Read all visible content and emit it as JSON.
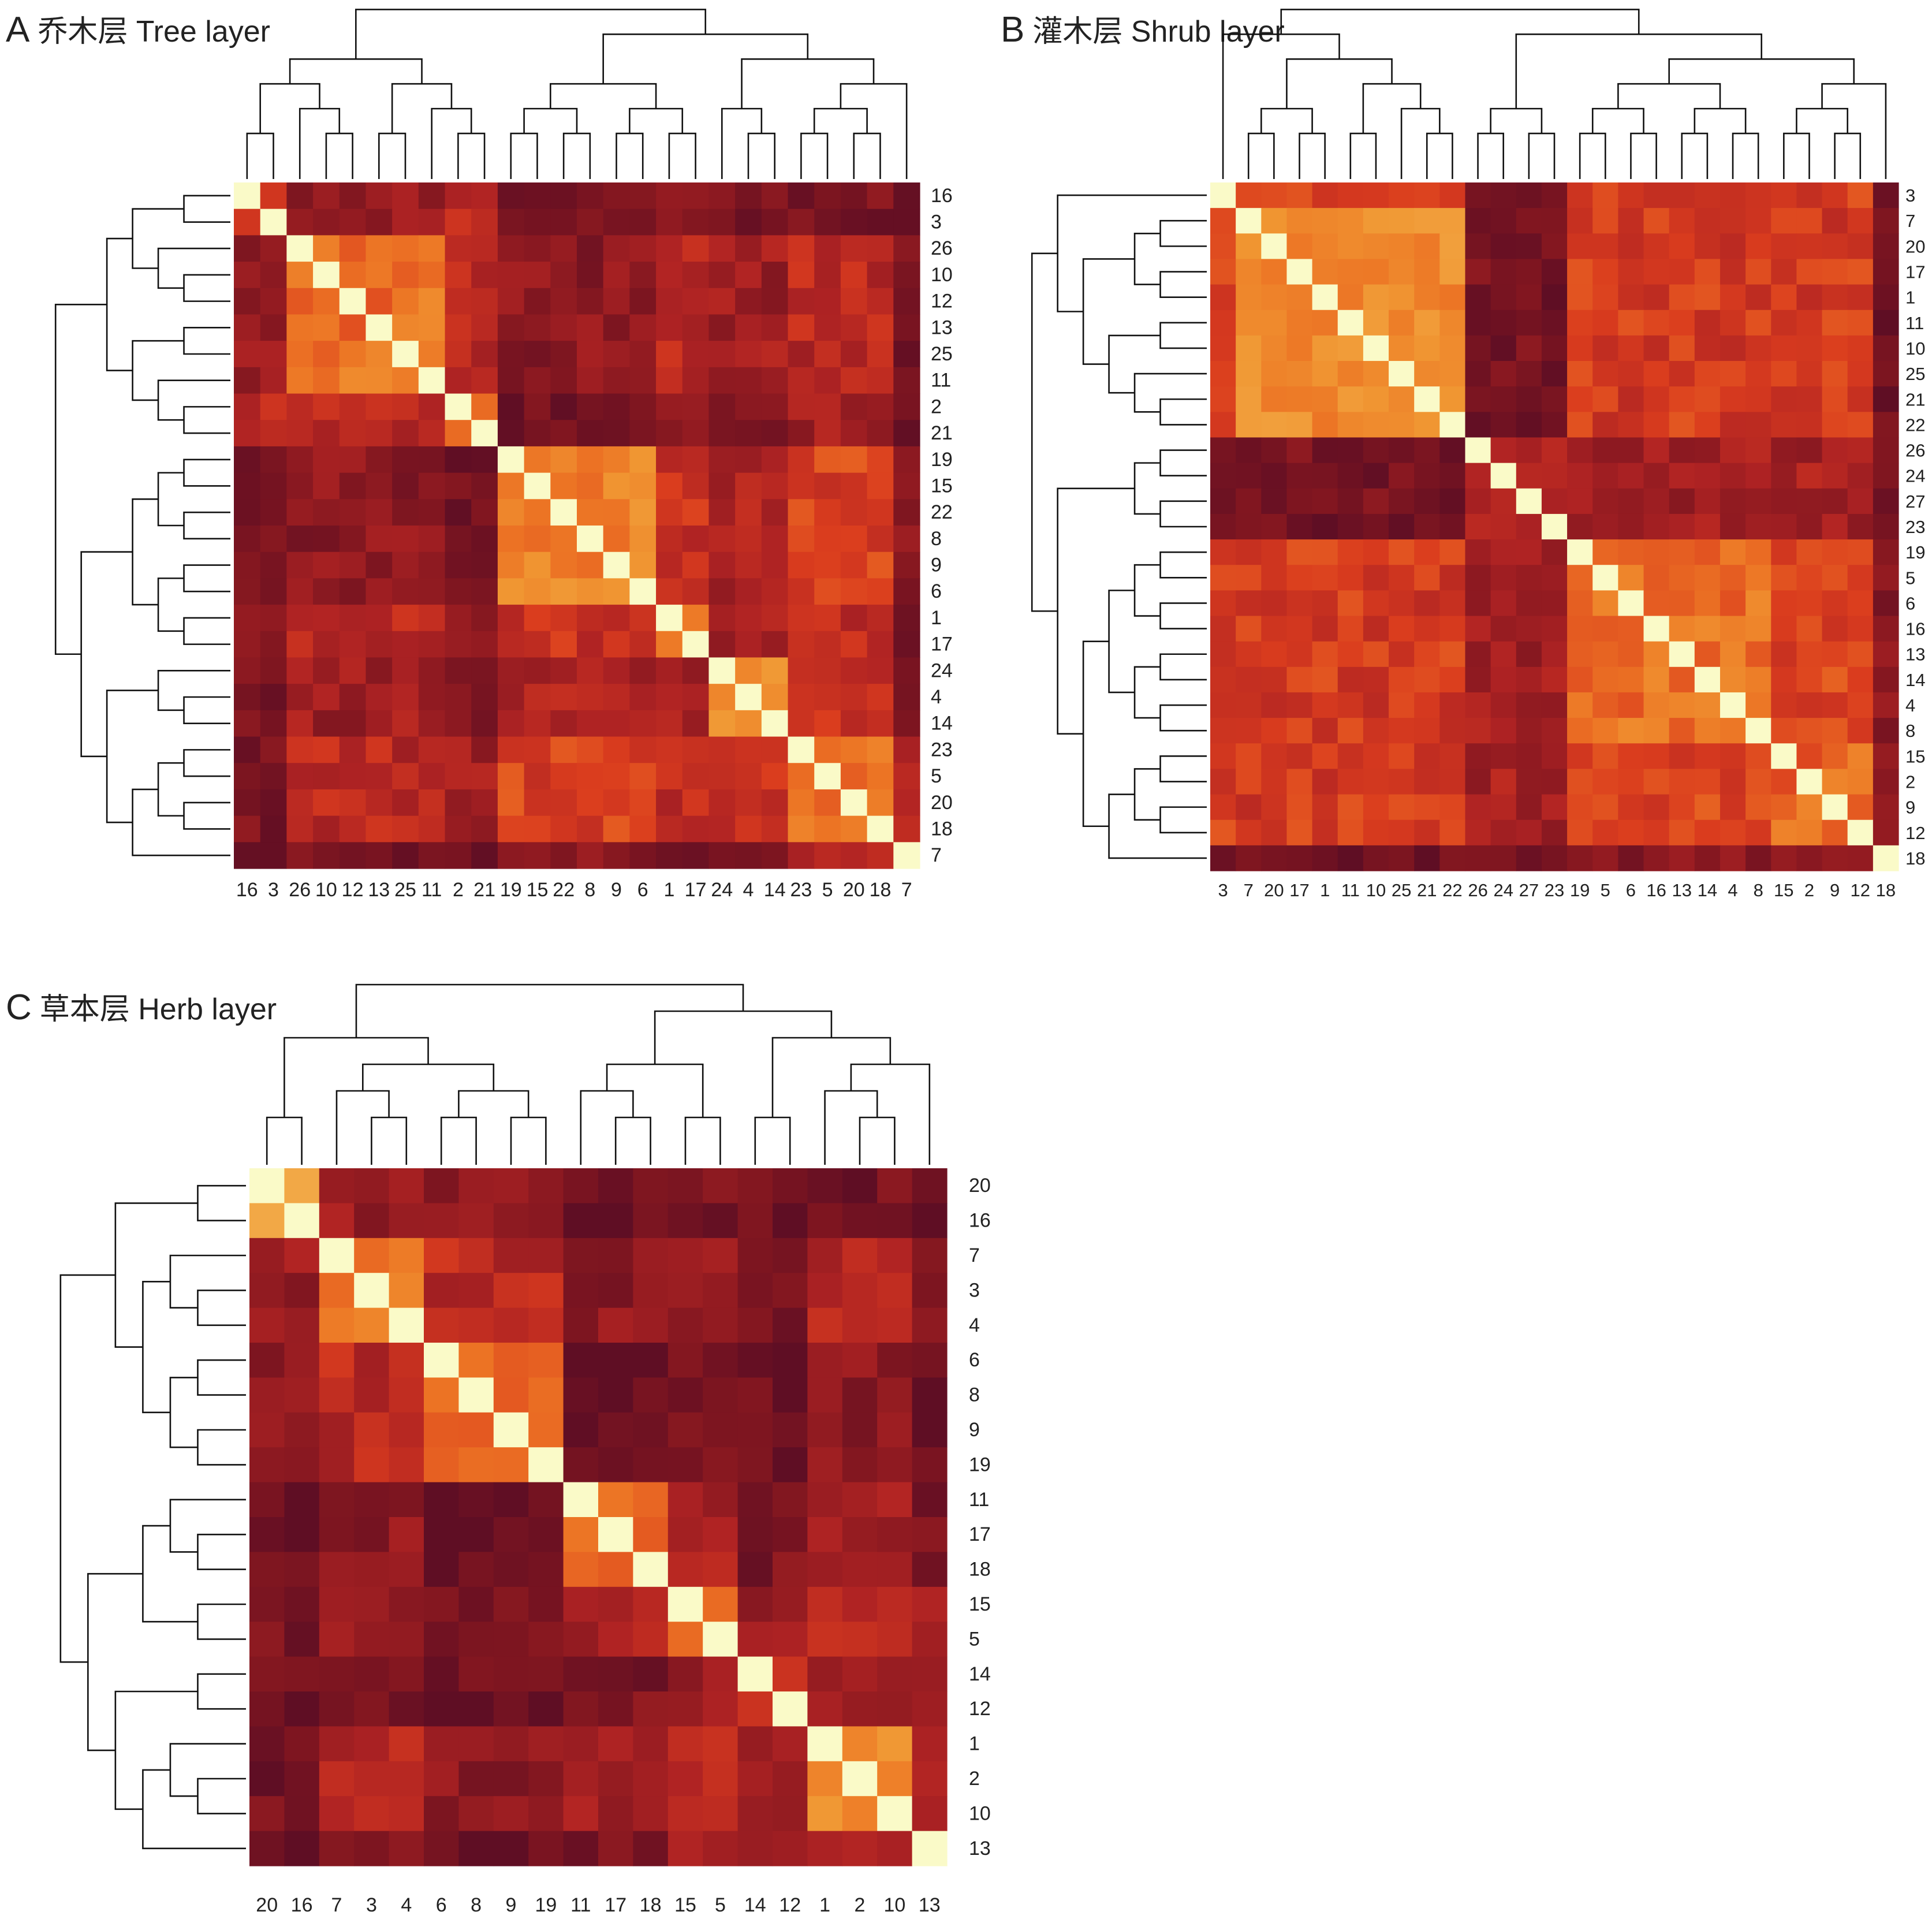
{
  "chart_data": [
    {
      "type": "heatmap",
      "panel_letter": "A",
      "title": "乔木层 Tree layer",
      "row_labels": [
        "16",
        "3",
        "26",
        "10",
        "12",
        "13",
        "25",
        "11",
        "2",
        "21",
        "19",
        "15",
        "22",
        "8",
        "9",
        "6",
        "1",
        "17",
        "24",
        "4",
        "14",
        "23",
        "5",
        "20",
        "18",
        "7"
      ],
      "col_labels": [
        "16",
        "3",
        "26",
        "10",
        "12",
        "13",
        "25",
        "11",
        "2",
        "21",
        "19",
        "15",
        "22",
        "8",
        "9",
        "6",
        "1",
        "17",
        "24",
        "4",
        "14",
        "23",
        "5",
        "20",
        "18",
        "7"
      ],
      "blocks": [
        [
          0,
          2
        ],
        [
          2,
          8
        ],
        [
          8,
          10
        ],
        [
          10,
          16
        ],
        [
          16,
          18
        ],
        [
          18,
          21
        ],
        [
          21,
          25
        ],
        [
          25,
          26
        ]
      ],
      "block_similarity": [
        [
          0.3,
          0.18,
          0.3,
          0.1,
          0.15,
          0.1,
          0.1,
          0.05
        ],
        [
          0.18,
          0.5,
          0.28,
          0.15,
          0.28,
          0.2,
          0.28,
          0.1
        ],
        [
          0.3,
          0.28,
          0.5,
          0.08,
          0.2,
          0.1,
          0.2,
          0.05
        ],
        [
          0.1,
          0.15,
          0.08,
          0.56,
          0.32,
          0.25,
          0.38,
          0.12
        ],
        [
          0.15,
          0.28,
          0.2,
          0.32,
          0.56,
          0.22,
          0.3,
          0.12
        ],
        [
          0.1,
          0.2,
          0.1,
          0.25,
          0.22,
          0.56,
          0.34,
          0.12
        ],
        [
          0.1,
          0.28,
          0.2,
          0.38,
          0.3,
          0.34,
          0.48,
          0.22
        ],
        [
          0.05,
          0.1,
          0.05,
          0.12,
          0.12,
          0.12,
          0.22,
          0.3
        ]
      ],
      "diagonal_value": 1,
      "dendrogram_cuts": [
        [
          0,
          10
        ],
        [
          0,
          2
        ],
        [
          2,
          8
        ],
        [
          8,
          10
        ],
        [
          10,
          26
        ],
        [
          10,
          18
        ],
        [
          18,
          26
        ],
        [
          18,
          21
        ],
        [
          21,
          26
        ],
        [
          21,
          25
        ],
        [
          25,
          26
        ]
      ]
    },
    {
      "type": "heatmap",
      "panel_letter": "B",
      "title": "灌木层 Shrub layer",
      "row_labels": [
        "3",
        "7",
        "20",
        "17",
        "1",
        "11",
        "10",
        "25",
        "21",
        "22",
        "26",
        "24",
        "27",
        "23",
        "19",
        "5",
        "6",
        "16",
        "13",
        "14",
        "4",
        "8",
        "15",
        "2",
        "9",
        "12",
        "18"
      ],
      "col_labels": [
        "3",
        "7",
        "20",
        "17",
        "1",
        "11",
        "10",
        "25",
        "21",
        "22",
        "26",
        "24",
        "27",
        "23",
        "19",
        "5",
        "6",
        "16",
        "13",
        "14",
        "4",
        "8",
        "15",
        "2",
        "9",
        "12",
        "18"
      ],
      "blocks": [
        [
          0,
          1
        ],
        [
          1,
          10
        ],
        [
          10,
          14
        ],
        [
          14,
          22
        ],
        [
          22,
          26
        ],
        [
          26,
          27
        ]
      ],
      "block_similarity": [
        [
          0.55,
          0.4,
          0.05,
          0.38,
          0.38,
          0.05
        ],
        [
          0.4,
          0.58,
          0.08,
          0.36,
          0.36,
          0.05
        ],
        [
          0.05,
          0.08,
          0.3,
          0.22,
          0.22,
          0.1
        ],
        [
          0.38,
          0.36,
          0.22,
          0.5,
          0.4,
          0.15
        ],
        [
          0.38,
          0.36,
          0.22,
          0.4,
          0.48,
          0.18
        ],
        [
          0.05,
          0.05,
          0.1,
          0.15,
          0.18,
          0.3
        ]
      ],
      "diagonal_value": 1,
      "dendrogram_cuts": [
        [
          0,
          27
        ],
        [
          0,
          10
        ],
        [
          0,
          1
        ],
        [
          1,
          10
        ],
        [
          10,
          27
        ],
        [
          10,
          14
        ],
        [
          14,
          27
        ],
        [
          14,
          22
        ],
        [
          22,
          27
        ],
        [
          22,
          26
        ],
        [
          26,
          27
        ]
      ]
    },
    {
      "type": "heatmap",
      "panel_letter": "C",
      "title": "草本层 Herb layer",
      "row_labels": [
        "20",
        "16",
        "7",
        "3",
        "4",
        "6",
        "8",
        "9",
        "19",
        "11",
        "17",
        "18",
        "15",
        "5",
        "14",
        "12",
        "1",
        "2",
        "10",
        "13"
      ],
      "col_labels": [
        "20",
        "16",
        "7",
        "3",
        "4",
        "6",
        "8",
        "9",
        "19",
        "11",
        "17",
        "18",
        "15",
        "5",
        "14",
        "12",
        "1",
        "2",
        "10",
        "13"
      ],
      "blocks": [
        [
          0,
          2
        ],
        [
          2,
          5
        ],
        [
          5,
          9
        ],
        [
          9,
          12
        ],
        [
          12,
          14
        ],
        [
          14,
          16
        ],
        [
          16,
          19
        ],
        [
          19,
          20
        ]
      ],
      "block_similarity": [
        [
          0.62,
          0.2,
          0.15,
          0.05,
          0.1,
          0.05,
          0.08,
          0.05
        ],
        [
          0.2,
          0.52,
          0.28,
          0.15,
          0.15,
          0.08,
          0.28,
          0.1
        ],
        [
          0.15,
          0.28,
          0.5,
          0.05,
          0.12,
          0.05,
          0.15,
          0.05
        ],
        [
          0.05,
          0.15,
          0.05,
          0.52,
          0.25,
          0.1,
          0.2,
          0.1
        ],
        [
          0.1,
          0.15,
          0.12,
          0.25,
          0.5,
          0.2,
          0.3,
          0.2
        ],
        [
          0.05,
          0.08,
          0.05,
          0.1,
          0.2,
          0.4,
          0.22,
          0.2
        ],
        [
          0.08,
          0.28,
          0.15,
          0.2,
          0.3,
          0.22,
          0.55,
          0.25
        ],
        [
          0.05,
          0.1,
          0.05,
          0.1,
          0.2,
          0.2,
          0.25,
          0.3
        ]
      ],
      "diagonal_value": 1,
      "dendrogram_cuts": [
        [
          0,
          20
        ],
        [
          0,
          9
        ],
        [
          0,
          2
        ],
        [
          2,
          9
        ],
        [
          2,
          5
        ],
        [
          5,
          9
        ],
        [
          9,
          20
        ],
        [
          9,
          14
        ],
        [
          9,
          12
        ],
        [
          12,
          14
        ],
        [
          14,
          20
        ],
        [
          14,
          16
        ],
        [
          16,
          20
        ],
        [
          16,
          19
        ],
        [
          19,
          20
        ]
      ]
    }
  ]
}
